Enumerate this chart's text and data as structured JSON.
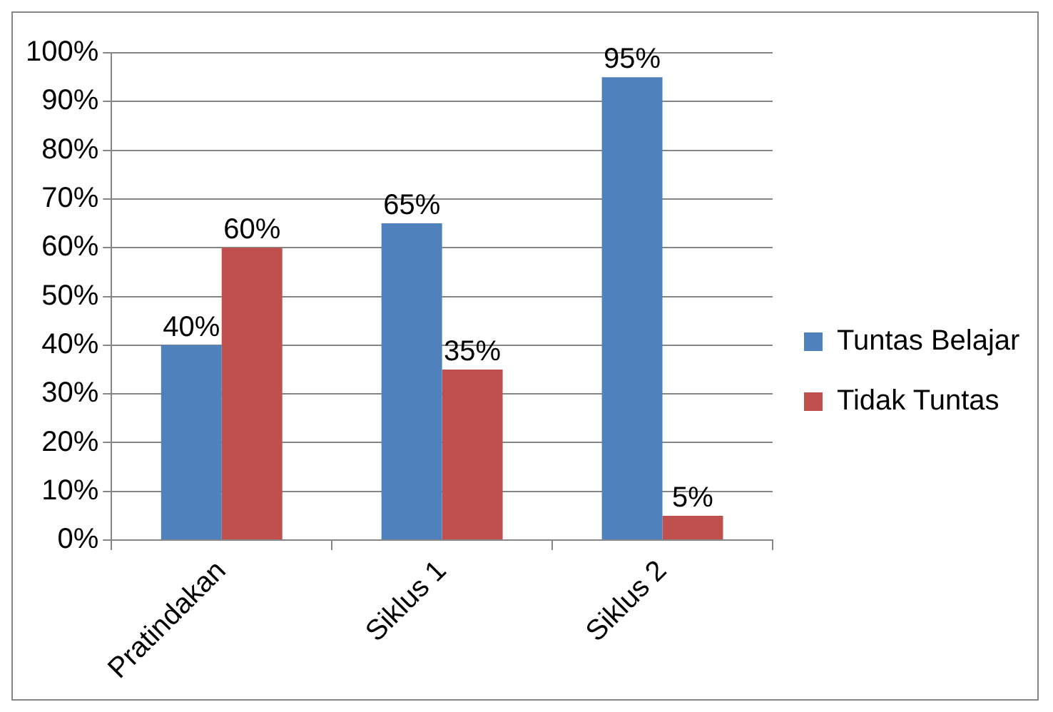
{
  "chart_data": {
    "type": "bar",
    "categories": [
      "Pratindakan",
      "Siklus 1",
      "Siklus 2"
    ],
    "series": [
      {
        "name": "Tuntas Belajar",
        "color": "#4f81bd",
        "values": [
          40,
          65,
          95
        ],
        "value_labels": [
          "40%",
          "65%",
          "95%"
        ]
      },
      {
        "name": "Tidak Tuntas",
        "color": "#c0504d",
        "values": [
          60,
          35,
          5
        ],
        "value_labels": [
          "60%",
          "35%",
          "5%"
        ]
      }
    ],
    "ylim": [
      0,
      100
    ],
    "yticks": [
      {
        "value": 0,
        "label": "0%"
      },
      {
        "value": 10,
        "label": "10%"
      },
      {
        "value": 20,
        "label": "20%"
      },
      {
        "value": 30,
        "label": "30%"
      },
      {
        "value": 40,
        "label": "40%"
      },
      {
        "value": 50,
        "label": "50%"
      },
      {
        "value": 60,
        "label": "60%"
      },
      {
        "value": 70,
        "label": "70%"
      },
      {
        "value": 80,
        "label": "80%"
      },
      {
        "value": 90,
        "label": "90%"
      },
      {
        "value": 100,
        "label": "100%"
      }
    ],
    "grid": "y",
    "legend": "right"
  }
}
